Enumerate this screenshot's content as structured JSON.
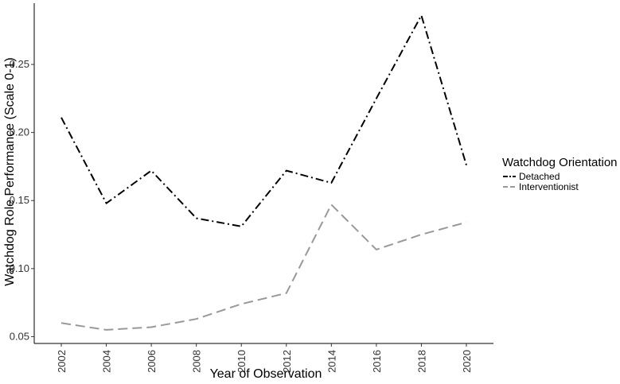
{
  "chart_data": {
    "type": "line",
    "title": "",
    "xlabel": "Year of Observation",
    "ylabel": "Watchdog Role Performance (Scale 0-1)",
    "x": [
      2002,
      2004,
      2006,
      2008,
      2010,
      2012,
      2014,
      2016,
      2018,
      2020
    ],
    "xticks": [
      "2002",
      "2004",
      "2006",
      "2008",
      "2010",
      "2012",
      "2014",
      "2016",
      "2018",
      "2020"
    ],
    "yticks": [
      "0.05",
      "0.10",
      "0.15",
      "0.20",
      "0.25"
    ],
    "ylim": [
      0.045,
      0.295
    ],
    "grid": false,
    "legend": {
      "title": "Watchdog Orientation",
      "placement": "right"
    },
    "series": [
      {
        "name": "Detached",
        "color": "#000000",
        "dash": "dash-dot",
        "values": [
          0.211,
          0.148,
          0.172,
          0.137,
          0.131,
          0.172,
          0.163,
          0.225,
          0.286,
          0.176
        ]
      },
      {
        "name": "Interventionist",
        "color": "#999999",
        "dash": "dashed",
        "values": [
          0.06,
          0.055,
          0.057,
          0.063,
          0.074,
          0.082,
          0.147,
          0.114,
          0.125,
          0.134
        ]
      }
    ]
  }
}
